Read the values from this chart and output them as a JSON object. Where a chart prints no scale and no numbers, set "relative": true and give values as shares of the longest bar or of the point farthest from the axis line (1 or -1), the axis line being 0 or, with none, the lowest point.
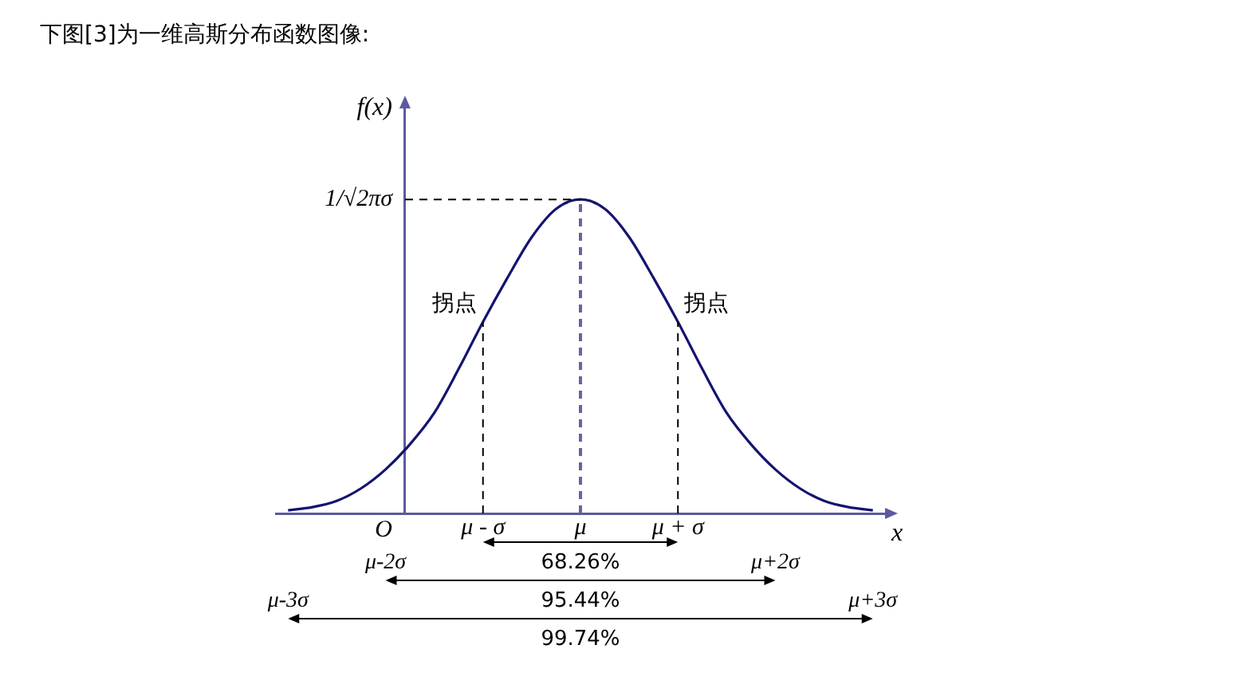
{
  "chart_data": {
    "type": "line",
    "title": "下图[3]为一维高斯分布函数图像:",
    "xlabel": "x",
    "ylabel": "f(x)",
    "relative": true,
    "categories": [
      null,
      null,
      null,
      null,
      null,
      null,
      null,
      null,
      "μ - σ",
      null,
      null,
      null,
      "μ",
      null,
      null,
      null,
      "μ + σ",
      null,
      null,
      null,
      null,
      null,
      null,
      null,
      null
    ],
    "series": [
      {
        "color": "#141470",
        "values": [
          0.01,
          0.02,
          0.04,
          0.08,
          0.14,
          0.22,
          0.32,
          0.46,
          0.61,
          0.75,
          0.88,
          0.97,
          1,
          0.97,
          0.88,
          0.75,
          0.61,
          0.46,
          0.32,
          0.22,
          0.14,
          0.08,
          0.04,
          0.02,
          0.01
        ]
      }
    ],
    "ref_lines": [
      {
        "axis": "y",
        "value": 1,
        "label": "1/√2πσ",
        "line_style": "dashed",
        "color": "#000000"
      },
      {
        "axis": "x",
        "value": "μ - σ",
        "line_style": "dashed",
        "color": "#000000"
      },
      {
        "axis": "x",
        "value": "μ",
        "line_style": "dashed",
        "color": "#6464a0"
      },
      {
        "axis": "x",
        "value": "μ + σ",
        "line_style": "dashed",
        "color": "#000000"
      }
    ],
    "annotations": [
      {
        "text": "拐点",
        "x": "μ - σ",
        "y": 0.61
      },
      {
        "text": "拐点",
        "x": "μ + σ",
        "y": 0.61
      },
      "O",
      "68.26%",
      "μ-2σ",
      "μ+2σ",
      "95.44%",
      "μ-3σ",
      "μ+3σ",
      "99.74%"
    ],
    "grid": false,
    "legend": false,
    "marker": "none",
    "line_style": "solid"
  }
}
